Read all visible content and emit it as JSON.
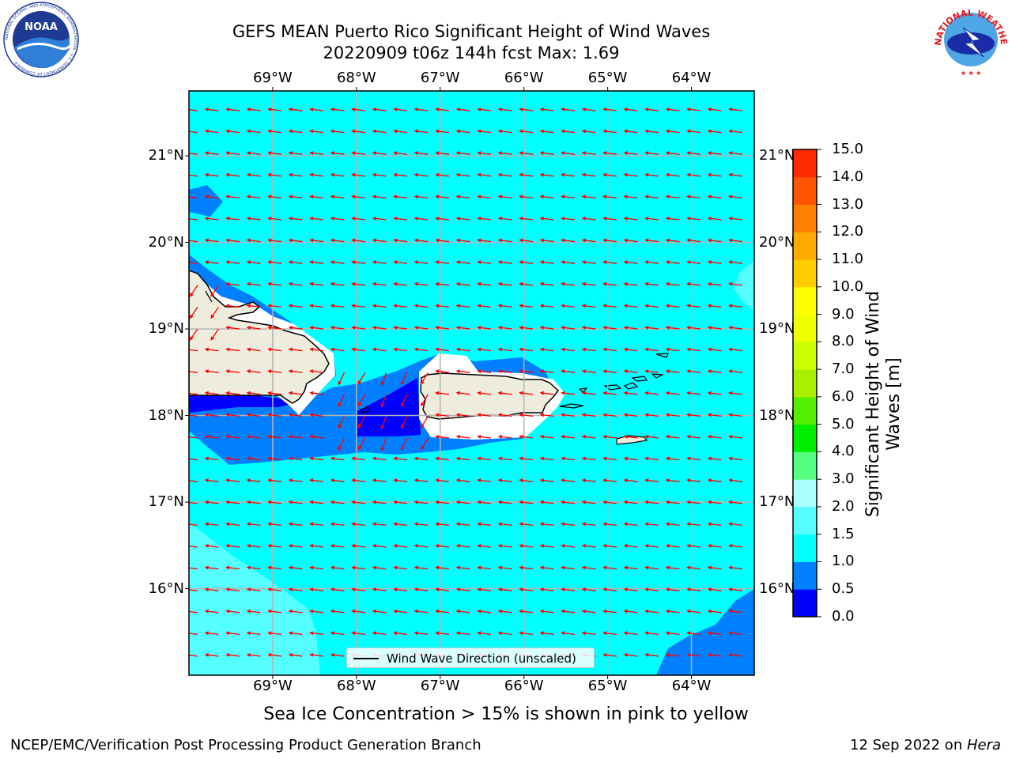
{
  "header": {
    "title_line1": "GEFS MEAN Puerto Rico Significant Height of Wind Waves",
    "title_line2": "20220909 t06z 144h fcst   Max: 1.69",
    "noaa_logo_text": "NOAA",
    "noaa_ring_text": "NATIONAL OCEANIC AND ATMOSPHERIC ADMINISTRATION · U.S. DEPARTMENT OF COMMERCE",
    "nws_ring_text": "NATIONAL WEATHER SERVICE"
  },
  "map": {
    "lon_labels": [
      "69°W",
      "68°W",
      "67°W",
      "66°W",
      "65°W",
      "64°W"
    ],
    "lat_labels": [
      "21°N",
      "20°N",
      "19°N",
      "18°N",
      "17°N",
      "16°N"
    ],
    "lon_values": [
      -69,
      -68,
      -67,
      -66,
      -65,
      -64
    ],
    "lat_values": [
      21,
      20,
      19,
      18,
      17,
      16
    ],
    "extent": {
      "lon_min": -70.0,
      "lon_max": -63.25,
      "lat_min": 15.0,
      "lat_max": 21.75
    },
    "colors": {
      "ocean_main": "#00ffff",
      "land": "#eeecdc",
      "arrows": "#ff0000",
      "grid": "#b4b4b4"
    },
    "legend_label": "Wind Wave Direction (unscaled)"
  },
  "colorbar": {
    "title": "Significant Height of Wind Waves [m]",
    "labels": [
      "15.0",
      "14.0",
      "13.0",
      "12.0",
      "11.0",
      "10.0",
      "9.0",
      "8.0",
      "7.0",
      "6.0",
      "5.0",
      "4.0",
      "3.0",
      "2.0",
      "1.5",
      "1.0",
      "0.5",
      "0.0"
    ],
    "levels": [
      0.0,
      0.5,
      1.0,
      1.5,
      2.0,
      3.0,
      4.0,
      5.0,
      6.0,
      7.0,
      8.0,
      9.0,
      10.0,
      11.0,
      12.0,
      13.0,
      14.0,
      15.0
    ],
    "colors": [
      "#0000ff",
      "#0080ff",
      "#00ffff",
      "#55ffff",
      "#aaffff",
      "#55ff80",
      "#00ee00",
      "#55ee00",
      "#aaee00",
      "#ccff00",
      "#eeff00",
      "#ffff00",
      "#ffcc00",
      "#ffaa00",
      "#ff8000",
      "#ff5500",
      "#ff2a00",
      "#ff0000"
    ]
  },
  "footer": {
    "sea_ice_note": "Sea Ice Concentration > 15% is shown in pink to yellow",
    "left": "NCEP/EMC/Verification Post Processing Product Generation Branch",
    "right_prefix": "12 Sep 2022 on ",
    "right_machine": "Hera"
  }
}
